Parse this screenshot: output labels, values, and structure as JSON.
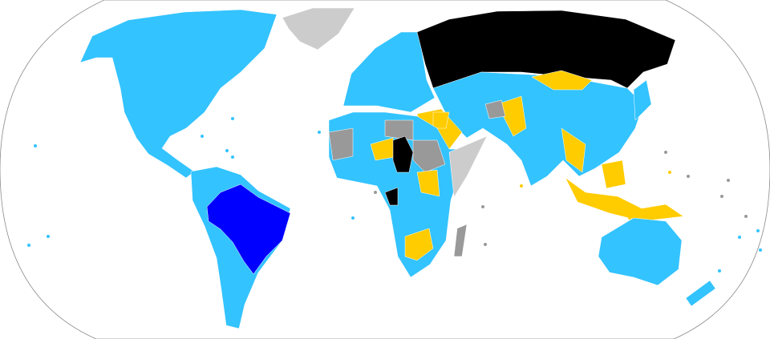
{
  "map": {
    "projection": "robinson",
    "colors": {
      "primary": "#0000ff",
      "category_a": "#33c3ff",
      "category_b": "#000000",
      "category_c": "#ffcc00",
      "category_d": "#999999",
      "no_data": "#cccccc",
      "ocean": "#ffffff",
      "outline": "#8a8a8a"
    }
  }
}
